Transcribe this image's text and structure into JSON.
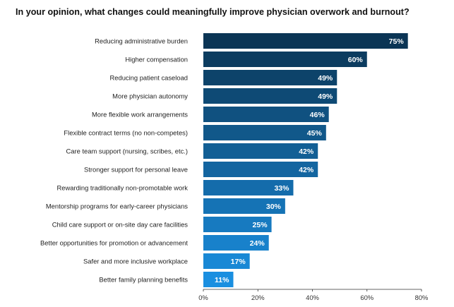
{
  "chart_data": {
    "type": "bar",
    "orientation": "horizontal",
    "title": "In your opinion, what changes could meaningfully improve physician overwork and burnout?",
    "xlabel": "",
    "ylabel": "",
    "categories": [
      "Reducing administrative burden",
      "Higher compensation",
      "Reducing patient caseload",
      "More physician autonomy",
      "More flexible work arrangements",
      "Flexible contract terms (no non-competes)",
      "Care team support (nursing, scribes, etc.)",
      "Stronger support for personal leave",
      "Rewarding traditionally non-promotable work",
      "Mentorship programs for early-career physicians",
      "Child care support or on-site day care facilities",
      "Better opportunities for promotion or advancement",
      "Safer and more inclusive workplace",
      "Better family planning benefits"
    ],
    "values": [
      75,
      60,
      49,
      49,
      46,
      45,
      42,
      42,
      33,
      30,
      25,
      24,
      17,
      11
    ],
    "value_labels": [
      "75%",
      "60%",
      "49%",
      "49%",
      "46%",
      "45%",
      "42%",
      "42%",
      "33%",
      "30%",
      "25%",
      "24%",
      "17%",
      "11%"
    ],
    "xlim": [
      0,
      80
    ],
    "x_ticks": [
      0,
      20,
      40,
      60,
      80
    ],
    "x_tick_labels": [
      "0%",
      "20%",
      "40%",
      "60%",
      "80%"
    ],
    "grid": false,
    "legend": "none",
    "colors": {
      "bar_dark": "#0b3555",
      "bar_light": "#1a8fe0",
      "axis": "#333333"
    }
  }
}
